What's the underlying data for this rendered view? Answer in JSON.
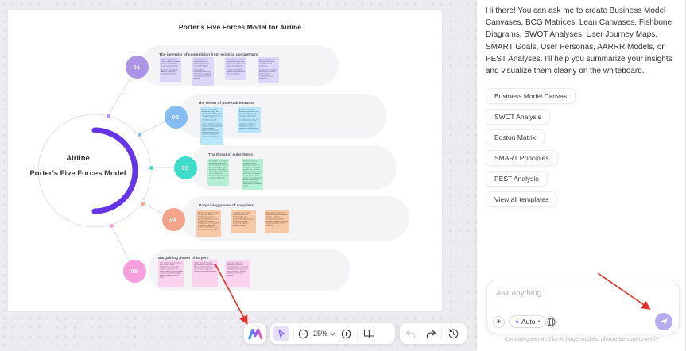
{
  "canvas": {
    "title": "Porter's Five Forces Model for Airline",
    "center_label": {
      "line1": "Airline",
      "line2": "Porter's Five Forces Model"
    },
    "sections": [
      {
        "number": "01",
        "heading": "The intensity of competition from existing competitors",
        "circle_color": "#ab93e6",
        "note_color": "#dcd6f9",
        "note_text_color": "#4b4a86",
        "notes": [
          "There are numerous airlines globally, leading to fierce competition; major airlines such as American Airlines, Delta Air Lines, and United Airlines have high competition intensity.",
          "The growth of the aviation industry is influenced by factors such as the global economy, oil prices, and the pandemic; fluctuating growth has been slow, making the competition even more intense.",
          "Most airlines offer highly homogeneous services, with discount differences driving in lower prices, and so customers, product differentiation between the products of prior competitors.",
          "The aviation industry has high fixed costs, including aircraft purchases, maintenance, and aircraft leases, leading to difficult exit, which drives intense competition among companies."
        ]
      },
      {
        "number": "02",
        "heading": "The threat of potential entrants",
        "circle_color": "#85bdf2",
        "note_color": "#b9e5fb",
        "note_text_color": "#2f5e7e",
        "notes": [
          "Barriers to entry: the barriers to entry in the aviation industry are high, mainly manifested in the significant initial capital investment, aircraft purchases, airport slot access, and the need for complex operating permits and strict safety regulations; moreover, incumbents can create substantial obstacles faced by new entrants.",
          "Economies of scale: existing large airlines can deliver operating costs through economies of scale; for instance, buying fuel pricing advantages in aircraft and fleet purchases, which are attractive but hard to achieve in the short term."
        ]
      },
      {
        "number": "03",
        "heading": "The threat of substitutes",
        "circle_color": "#3fdccc",
        "note_color": "#b5f0d6",
        "note_text_color": "#2e6e55",
        "notes": [
          "Substitutes: the aviation industry faces threats from substitutes such as high-speed trains, cars, and ships, especially on short routes; high-speed rail could take over market share of airlines in China and Europe.",
          "Switching costs for customers is low; passengers have low switching costs to high-speed trains, which is influenced by factors like travel time, the degree of urgency; however, airlines remain dominant for cross-continental travel, which reduces the demand for medium routes."
        ]
      },
      {
        "number": "04",
        "heading": "Bargaining power of suppliers",
        "circle_color": "#f5a48c",
        "note_color": "#f8c9a6",
        "note_text_color": "#7a4a2a",
        "notes": [
          "Number of suppliers: airlines rely on a few aircraft manufacturers (such as Boeing and Airbus), whose suppliers hold strong bargaining power over airline customers; additionally, aviation fuel suppliers are also vital industry providers.",
          "Uniqueness of supplies: aircraft and fuel are indispensable and irreplaceable key resources for airlines, thereby enhancing suppliers' bargaining power.",
          "Availability of alternative suppliers: due to the limited options in aircraft manufacturers and fuel suppliers, airlines accept the bargaining power of these suppliers."
        ]
      },
      {
        "number": "05",
        "heading": "Bargaining power of buyers",
        "circle_color": "#f59fdc",
        "note_color": "#fad4ef",
        "note_text_color": "#7a3a66",
        "notes": [
          "The number of passengers is vast, but due to the competitiveness of airline carriers, consumers can easily compare prices through comparison websites, giving buyers strong bargaining power.",
          "Online platforms enable passengers to easily access flight information, prices, and user reviews, enhancing consumers' bargaining power.",
          "Passengers have low switching costs when choosing airlines, especially in the prevalent situation of low-cost carriers, leading consumers more price sensitive."
        ]
      }
    ]
  },
  "toolbar": {
    "zoom_level": "25%"
  },
  "chat": {
    "greeting": "Hi there! You can ask me to create Business Model Canvases, BCG Matrices, Lean Canvases, Fishbone Diagrams, SWOT Analyses, User Journey Maps, SMART Goals, User Personas, AARRR Models, or PEST Analyses. I'll help you summarize your insights and visualize them clearly on the whiteboard.",
    "templates": [
      "Business Model Canvas",
      "SWOT Analysis",
      "Boston Matrix",
      "SMART Principles",
      "PEST Analysis",
      "View all templates"
    ],
    "input_placeholder": "Ask anything",
    "model_selector": "Auto",
    "disclaimer": "Content generated by AI large models, please be sure to verify"
  },
  "colors": {
    "accent_purple_arc": "#6635e8",
    "send_button": "#b5abf1",
    "annotation_arrow_red": "#e03227",
    "selected_tool_bg": "#e7e0fb",
    "section_pill_bg": "#f4f4f6"
  }
}
